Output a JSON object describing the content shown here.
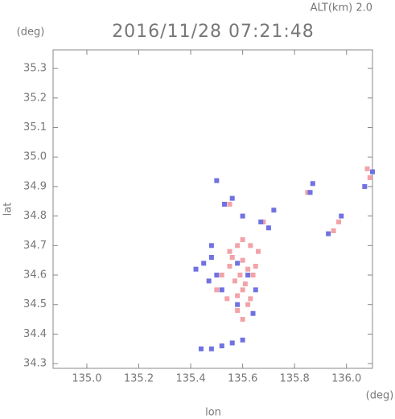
{
  "chart_data": {
    "type": "scatter",
    "title": "2016/11/28 07:21:48",
    "subtitle": "ALT(km) 2.0",
    "x_label": "lon",
    "y_label": "lat",
    "x_unit": "(deg)",
    "y_unit": "(deg)",
    "xlim": [
      134.87,
      136.1
    ],
    "ylim": [
      34.284,
      35.363
    ],
    "xticks": [
      {
        "value": 135,
        "label": "135.0"
      },
      135.2,
      135.4,
      135.6,
      135.8,
      {
        "value": 136,
        "label": "136.0"
      }
    ],
    "yticks": [
      34.3,
      34.4,
      34.5,
      34.6,
      34.7,
      34.8,
      34.9,
      {
        "value": 35,
        "label": "35.0"
      },
      35.1,
      35.2,
      35.3
    ],
    "series": [
      {
        "color": "#f2a3a8",
        "x": [
          135.55,
          135.58,
          135.6,
          135.62,
          135.64,
          135.57,
          135.6,
          135.63,
          135.52,
          135.55,
          135.59,
          135.61,
          135.66,
          135.58,
          135.54,
          135.62,
          135.6,
          135.56,
          135.5,
          135.65,
          135.95,
          135.97,
          136.09,
          136.08,
          135.55,
          135.68,
          135.85,
          135.6,
          135.63,
          135.58
        ],
        "values": [
          34.68,
          34.7,
          34.65,
          34.62,
          34.6,
          34.58,
          34.55,
          34.52,
          34.6,
          34.63,
          34.6,
          34.57,
          34.68,
          34.48,
          34.52,
          34.5,
          34.45,
          34.66,
          34.55,
          34.63,
          34.75,
          34.78,
          34.93,
          34.96,
          34.84,
          34.78,
          34.88,
          34.72,
          34.7,
          34.53
        ]
      },
      {
        "color": "#6f72e0",
        "x": [
          135.42,
          135.45,
          135.48,
          135.5,
          135.47,
          135.52,
          135.65,
          135.62,
          135.58,
          135.53,
          135.56,
          135.6,
          135.67,
          135.72,
          135.7,
          135.87,
          135.86,
          135.93,
          135.98,
          136.07,
          136.1,
          135.44,
          135.48,
          135.52,
          135.56,
          135.6,
          135.5,
          135.48,
          135.58,
          135.64
        ],
        "values": [
          34.62,
          34.64,
          34.66,
          34.6,
          34.58,
          34.55,
          34.55,
          34.6,
          34.64,
          34.84,
          34.86,
          34.8,
          34.78,
          34.82,
          34.76,
          34.91,
          34.88,
          34.74,
          34.8,
          34.9,
          34.95,
          34.35,
          34.35,
          34.36,
          34.37,
          34.38,
          34.92,
          34.7,
          34.5,
          34.47
        ]
      }
    ]
  }
}
